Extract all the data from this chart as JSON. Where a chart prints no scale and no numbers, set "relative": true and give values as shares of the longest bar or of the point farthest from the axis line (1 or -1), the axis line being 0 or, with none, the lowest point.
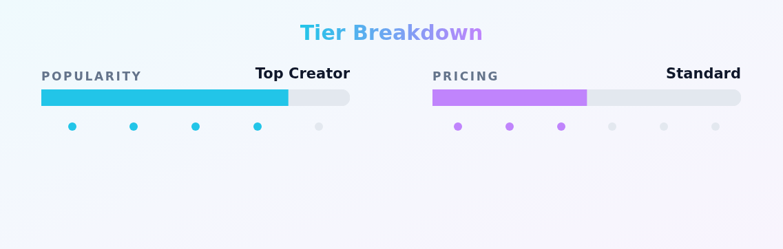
{
  "chart_data": [
    {
      "type": "other",
      "title": "Tier Breakdown"
    },
    {
      "type": "bar",
      "title": "POPULARITY",
      "annotations": [
        "Top Creator"
      ],
      "orientation": "horizontal",
      "stacked": true,
      "relative": true,
      "categories": [
        null
      ],
      "series": [
        {
          "color": "#22c5e8",
          "values": [
            0.8
          ]
        },
        {
          "color": "#e3e8ef",
          "values": [
            0.2
          ]
        }
      ]
    },
    {
      "type": "bar",
      "title": "PRICING",
      "annotations": [
        "Standard"
      ],
      "orientation": "horizontal",
      "stacked": true,
      "relative": true,
      "categories": [
        null
      ],
      "series": [
        {
          "color": "#c084fc",
          "values": [
            0.5
          ]
        },
        {
          "color": "#e3e8ef",
          "values": [
            0.5
          ]
        }
      ]
    }
  ]
}
